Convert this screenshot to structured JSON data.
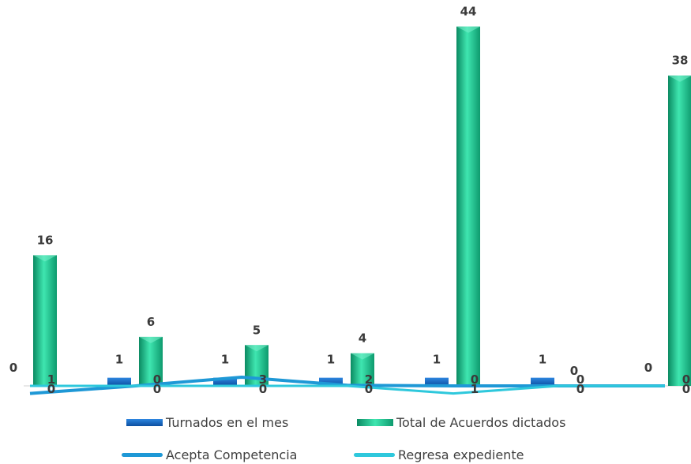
{
  "chart_data": {
    "type": "bar",
    "title": "",
    "xlabel": "",
    "ylabel": "",
    "categories": [
      "",
      "",
      "",
      "",
      "",
      "",
      ""
    ],
    "series": [
      {
        "name": "Turnados en el mes",
        "kind": "bar",
        "color": "#1f6fc6",
        "values": [
          0,
          1,
          1,
          1,
          1,
          1,
          0
        ]
      },
      {
        "name": "Total de Acuerdos dictados",
        "kind": "bar",
        "color": "#1fcc98",
        "values": [
          16,
          6,
          5,
          4,
          44,
          0,
          38
        ]
      },
      {
        "name": "Acepta Competencia",
        "kind": "line",
        "color": "#1e98d6",
        "values": [
          1,
          0,
          3,
          2,
          0,
          0,
          0
        ]
      },
      {
        "name": "Regresa expediente",
        "kind": "line",
        "color": "#2ec8dc",
        "values": [
          0,
          0,
          0,
          0,
          1,
          0,
          0
        ]
      }
    ],
    "grid": false,
    "legend_position": "bottom"
  },
  "legend": [
    {
      "label": "Turnados en el mes",
      "color": "#1f6fc6",
      "kind": "bar"
    },
    {
      "label": "Total de Acuerdos dictados",
      "color": "#1fcc98",
      "kind": "bar"
    },
    {
      "label": "Acepta Competencia",
      "color": "#1e98d6",
      "kind": "line"
    },
    {
      "label": "Regresa expediente",
      "color": "#2ec8dc",
      "kind": "line"
    }
  ]
}
